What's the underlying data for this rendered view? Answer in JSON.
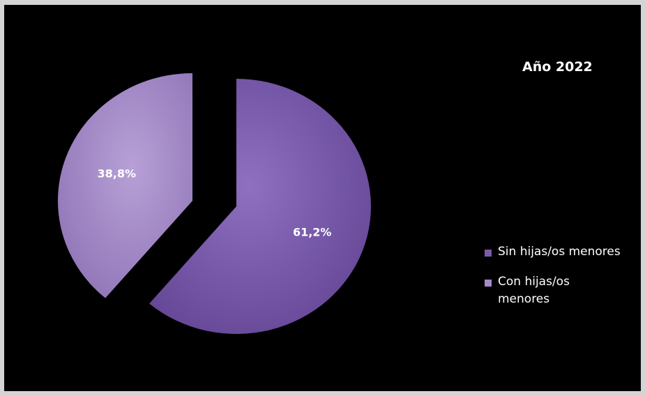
{
  "chart_data": {
    "type": "pie",
    "title": "Año 2022",
    "categories": [
      "Sin hijas/os menores",
      "Con hijas/os menores"
    ],
    "values": [
      61.2,
      38.8
    ],
    "value_labels": [
      "61,2%",
      "38,8%"
    ],
    "colors": [
      "#7a5aab",
      "#a58bc9"
    ],
    "legend_position": "right",
    "exploded": true
  }
}
